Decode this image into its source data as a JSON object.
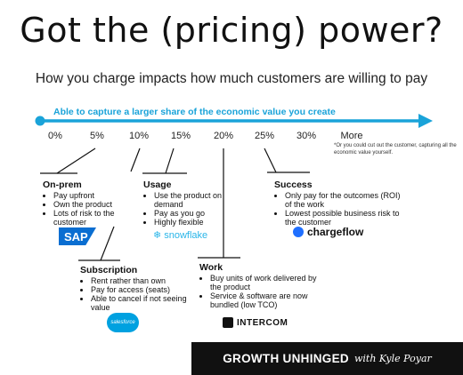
{
  "title": "Got the (pricing) power?",
  "subtitle": "How you charge impacts how much customers are willing to pay",
  "arrow_label": "Able to capture a larger share of the economic value you create",
  "scale": {
    "ticks": [
      "0%",
      "5%",
      "10%",
      "15%",
      "20%",
      "25%",
      "30%",
      "More"
    ],
    "footnote": "*Or you could cut out the customer, capturing all the economic value yourself."
  },
  "accent_color": "#1aa3d9",
  "models": [
    {
      "name": "On-prem",
      "bullets": [
        "Pay upfront",
        "Own the product",
        "Lots of risk to the customer"
      ],
      "logo": "SAP"
    },
    {
      "name": "Subscription",
      "bullets": [
        "Rent rather than own",
        "Pay for access (seats)",
        "Able to cancel if not seeing value"
      ],
      "logo": "salesforce"
    },
    {
      "name": "Usage",
      "bullets": [
        "Use the product on demand",
        "Pay as you go",
        "Highly flexible"
      ],
      "logo": "snowflake"
    },
    {
      "name": "Work",
      "bullets": [
        "Buy units of work delivered by the product",
        "Service & software are now bundled (low TCO)"
      ],
      "logo": "INTERCOM"
    },
    {
      "name": "Success",
      "bullets": [
        "Only pay for the outcomes (ROI) of the work",
        "Lowest possible business risk to the customer"
      ],
      "logo": "chargeflow"
    }
  ],
  "footer": {
    "brand": "GROWTH UNHINGED",
    "byline": "with Kyle Poyar"
  }
}
